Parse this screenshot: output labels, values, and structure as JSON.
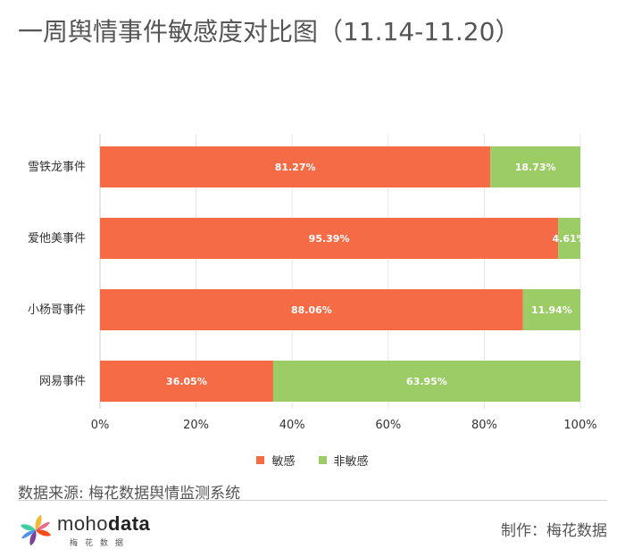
{
  "title": "一周舆情事件敏感度对比图（11.14-11.20）",
  "chart_data": {
    "type": "bar",
    "orientation": "horizontal",
    "stacked": true,
    "categories": [
      "雪铁龙事件",
      "爱他美事件",
      "小杨哥事件",
      "网易事件"
    ],
    "series": [
      {
        "name": "敏感",
        "color": "#f46b45",
        "values": [
          81.27,
          95.39,
          88.06,
          36.05
        ],
        "labels": [
          "81.27%",
          "95.39%",
          "88.06%",
          "36.05%"
        ]
      },
      {
        "name": "非敏感",
        "color": "#9ccc65",
        "values": [
          18.73,
          4.61,
          11.94,
          63.95
        ],
        "labels": [
          "18.73%",
          "4.61%",
          "11.94%",
          "63.95%"
        ]
      }
    ],
    "xlim": [
      0,
      100
    ],
    "xticks": [
      "0%",
      "20%",
      "40%",
      "60%",
      "80%",
      "100%"
    ],
    "grid": true,
    "legend_position": "bottom"
  },
  "source": "数据来源: 梅花数据舆情监测系统",
  "logo": {
    "word_light": "moho",
    "word_bold": "data",
    "sub": "梅花数据"
  },
  "credit": "制作：梅花数据"
}
